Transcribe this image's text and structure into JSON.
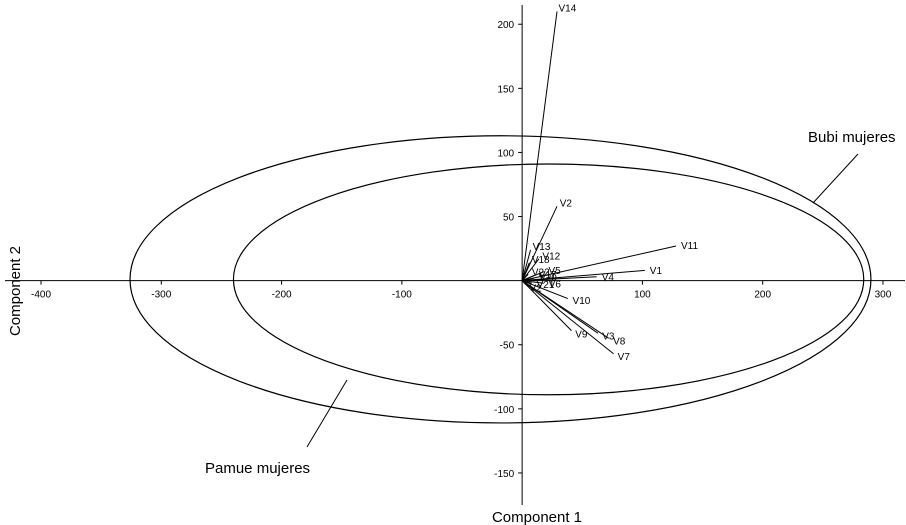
{
  "chart_data": {
    "type": "scatter",
    "title": "",
    "xlabel": "Component 1",
    "ylabel": "Component 2",
    "xlim": [
      -405,
      310
    ],
    "ylim": [
      -175,
      215
    ],
    "xticks": [
      -400,
      -300,
      -200,
      -100,
      100,
      200,
      300
    ],
    "yticks": [
      -150,
      -100,
      -50,
      50,
      100,
      150,
      200
    ],
    "grid": false,
    "series": [],
    "vectors": [
      {
        "label": "V14",
        "x": 29,
        "y": 210
      },
      {
        "label": "V2",
        "x": 29,
        "y": 58
      },
      {
        "label": "V11",
        "x": 128,
        "y": 27
      },
      {
        "label": "V1",
        "x": 102,
        "y": 8
      },
      {
        "label": "V4",
        "x": 62,
        "y": 3
      },
      {
        "label": "V5",
        "x": 18,
        "y": 7
      },
      {
        "label": "V6",
        "x": 18,
        "y": -2
      },
      {
        "label": "V10",
        "x": 38,
        "y": -14
      },
      {
        "label": "V9",
        "x": 41,
        "y": -39
      },
      {
        "label": "V3",
        "x": 63,
        "y": -41
      },
      {
        "label": "V8",
        "x": 72,
        "y": -45
      },
      {
        "label": "V7",
        "x": 76,
        "y": -57
      },
      {
        "label": "V13",
        "x": 7,
        "y": 24
      },
      {
        "label": "V12",
        "x": 14,
        "y": 17
      },
      {
        "label": "V18",
        "x": 6,
        "y": 14
      },
      {
        "label": "V22",
        "x": 5,
        "y": 5
      },
      {
        "label": "V2",
        "x": 3,
        "y": -3
      },
      {
        "label": "V17",
        "x": 10,
        "y": 4
      },
      {
        "label": "V20",
        "x": 10,
        "y": 2
      },
      {
        "label": "V21",
        "x": 8,
        "y": -2
      }
    ],
    "ellipses": [
      {
        "label": "Bubi mujeres",
        "cx": -18,
        "cy": 1,
        "rx": 308,
        "ry": 112
      },
      {
        "label": "Pamue mujeres",
        "cx": 22,
        "cy": 1,
        "rx": 262,
        "ry": 90
      }
    ]
  }
}
